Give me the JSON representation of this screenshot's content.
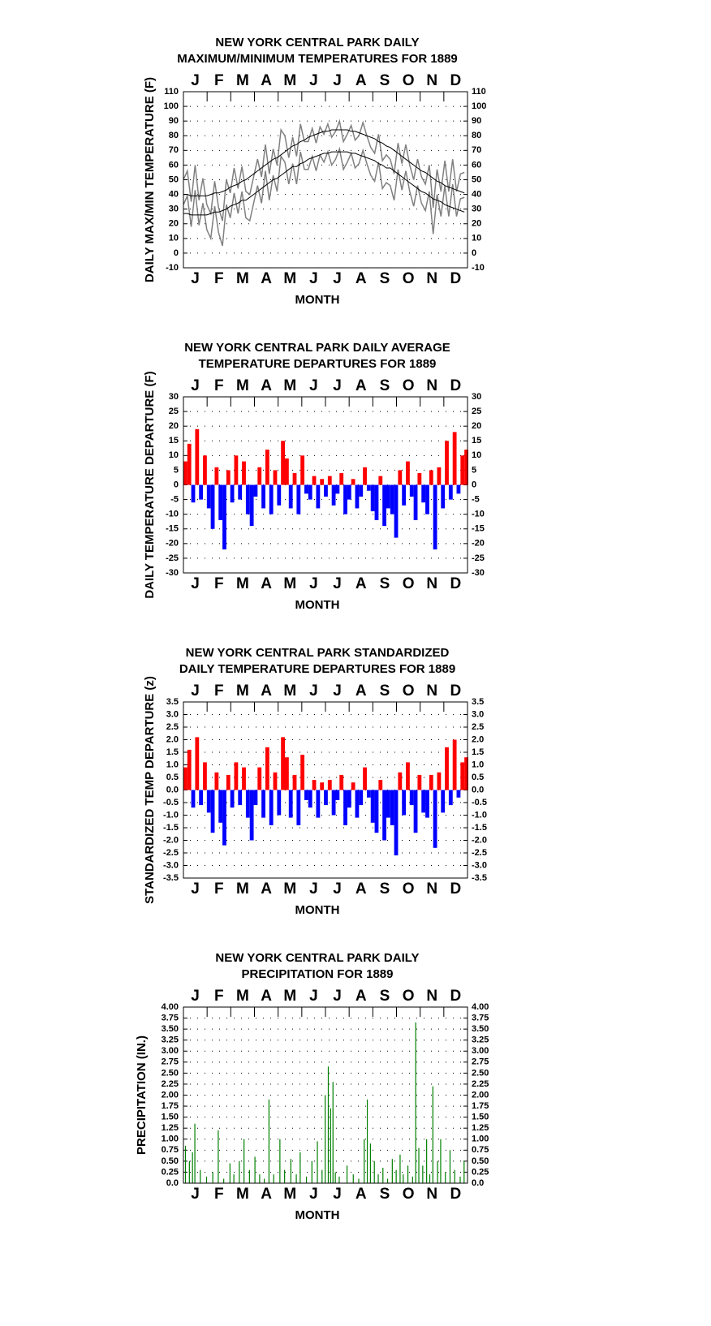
{
  "chart_data": [
    {
      "type": "line",
      "title": [
        "NEW YORK CENTRAL PARK DAILY",
        "MAXIMUM/MINIMUM TEMPERATURES FOR 1889"
      ],
      "categories": [
        "J",
        "F",
        "M",
        "A",
        "M",
        "J",
        "J",
        "A",
        "S",
        "O",
        "N",
        "D"
      ],
      "x_label": "MONTH",
      "y_label": "DAILY MAX/MIN TEMPERATURE (F)",
      "xlim": [
        1,
        365
      ],
      "ylim": [
        -10,
        110
      ],
      "yticks": [
        -10,
        0,
        10,
        20,
        30,
        40,
        50,
        60,
        70,
        80,
        90,
        100,
        110
      ],
      "grid": true,
      "x": [
        1,
        6,
        11,
        16,
        21,
        26,
        31,
        36,
        41,
        46,
        51,
        56,
        61,
        66,
        71,
        76,
        81,
        86,
        91,
        96,
        101,
        106,
        111,
        116,
        121,
        126,
        131,
        136,
        141,
        146,
        151,
        156,
        161,
        166,
        171,
        176,
        181,
        186,
        191,
        196,
        201,
        206,
        211,
        216,
        221,
        226,
        231,
        236,
        241,
        246,
        251,
        256,
        261,
        266,
        271,
        276,
        281,
        286,
        291,
        296,
        301,
        306,
        311,
        316,
        321,
        326,
        331,
        336,
        341,
        346,
        351,
        356,
        361
      ],
      "series": [
        {
          "color": "#808080",
          "values": [
            50,
            56,
            35,
            60,
            36,
            51,
            33,
            27,
            49,
            31,
            22,
            50,
            41,
            58,
            44,
            59,
            42,
            40,
            52,
            64,
            52,
            74,
            54,
            71,
            60,
            84,
            80,
            65,
            79,
            66,
            88,
            76,
            76,
            85,
            75,
            86,
            81,
            88,
            79,
            83,
            90,
            76,
            81,
            87,
            77,
            80,
            89,
            80,
            72,
            68,
            81,
            63,
            67,
            64,
            54,
            75,
            61,
            74,
            60,
            50,
            64,
            52,
            47,
            60,
            31,
            57,
            42,
            63,
            42,
            64,
            42,
            54,
            55
          ]
        },
        {
          "color": "#808080",
          "values": [
            33,
            39,
            18,
            43,
            19,
            34,
            16,
            10,
            32,
            14,
            5,
            33,
            24,
            41,
            27,
            42,
            24,
            22,
            34,
            46,
            34,
            56,
            36,
            53,
            42,
            66,
            62,
            47,
            61,
            47,
            69,
            57,
            57,
            66,
            56,
            67,
            62,
            69,
            60,
            64,
            71,
            57,
            62,
            68,
            58,
            61,
            70,
            61,
            53,
            49,
            62,
            44,
            48,
            46,
            36,
            57,
            43,
            56,
            42,
            32,
            46,
            34,
            29,
            42,
            13,
            40,
            25,
            46,
            25,
            47,
            25,
            37,
            38
          ]
        },
        {
          "color": "#000000",
          "values": [
            40,
            40,
            39,
            39,
            39,
            39,
            39,
            40,
            41,
            41,
            42,
            43,
            45,
            46,
            47,
            49,
            50,
            52,
            54,
            56,
            58,
            60,
            62,
            64,
            65,
            67,
            69,
            71,
            73,
            74,
            76,
            77,
            79,
            80,
            81,
            82,
            83,
            83,
            84,
            84,
            84,
            84,
            84,
            83,
            83,
            82,
            81,
            80,
            79,
            78,
            76,
            75,
            73,
            72,
            70,
            68,
            66,
            64,
            62,
            60,
            58,
            56,
            55,
            53,
            51,
            49,
            48,
            46,
            45,
            44,
            43,
            42,
            41
          ]
        },
        {
          "color": "#000000",
          "values": [
            27,
            27,
            26,
            26,
            26,
            26,
            26,
            27,
            28,
            28,
            29,
            30,
            32,
            33,
            34,
            36,
            36,
            38,
            40,
            42,
            44,
            46,
            48,
            50,
            51,
            53,
            55,
            57,
            59,
            59,
            61,
            62,
            64,
            65,
            66,
            67,
            68,
            68,
            69,
            69,
            69,
            69,
            69,
            68,
            68,
            67,
            66,
            65,
            64,
            63,
            61,
            60,
            58,
            58,
            56,
            54,
            52,
            50,
            48,
            46,
            44,
            42,
            41,
            39,
            37,
            36,
            35,
            33,
            32,
            31,
            30,
            29,
            28
          ]
        }
      ]
    },
    {
      "type": "bar",
      "title": [
        "NEW YORK CENTRAL PARK DAILY AVERAGE",
        "TEMPERATURE DEPARTURES FOR 1889"
      ],
      "categories": [
        "J",
        "F",
        "M",
        "A",
        "M",
        "J",
        "J",
        "A",
        "S",
        "O",
        "N",
        "D"
      ],
      "x_label": "MONTH",
      "y_label": "DAILY TEMPERATURE DEPARTURE (F)",
      "xlim": [
        1,
        365
      ],
      "ylim": [
        -30,
        30
      ],
      "yticks": [
        -30,
        -25,
        -20,
        -15,
        -10,
        -5,
        0,
        5,
        10,
        15,
        20,
        25,
        30
      ],
      "grid": true,
      "positive_color": "#ff0000",
      "negative_color": "#0000ff",
      "bar_days": 5,
      "x": [
        1,
        6,
        11,
        16,
        21,
        26,
        31,
        36,
        41,
        46,
        51,
        56,
        61,
        66,
        71,
        76,
        81,
        86,
        91,
        96,
        101,
        106,
        111,
        116,
        121,
        126,
        131,
        136,
        141,
        146,
        151,
        156,
        161,
        166,
        171,
        176,
        181,
        186,
        191,
        196,
        201,
        206,
        211,
        216,
        221,
        226,
        231,
        236,
        241,
        246,
        251,
        256,
        261,
        266,
        271,
        276,
        281,
        286,
        291,
        296,
        301,
        306,
        311,
        316,
        321,
        326,
        331,
        336,
        341,
        346,
        351,
        356,
        361
      ],
      "values": [
        8,
        14,
        -6,
        19,
        -5,
        10,
        -8,
        -15,
        6,
        -12,
        -22,
        5,
        -6,
        10,
        -5,
        8,
        -10,
        -14,
        -4,
        6,
        -8,
        12,
        -10,
        5,
        -7,
        15,
        9,
        -8,
        4,
        -10,
        10,
        -3,
        -5,
        3,
        -8,
        2,
        -4,
        3,
        -7,
        -3,
        4,
        -10,
        -5,
        2,
        -8,
        -4,
        6,
        -2,
        -9,
        -12,
        3,
        -14,
        -8,
        -10,
        -18,
        5,
        -7,
        8,
        -4,
        -12,
        4,
        -6,
        -10,
        5,
        -22,
        6,
        -8,
        15,
        -5,
        18,
        -3,
        10,
        12
      ]
    },
    {
      "type": "bar",
      "title": [
        "NEW YORK CENTRAL PARK STANDARDIZED",
        "DAILY TEMPERATURE DEPARTURES FOR 1889"
      ],
      "categories": [
        "J",
        "F",
        "M",
        "A",
        "M",
        "J",
        "J",
        "A",
        "S",
        "O",
        "N",
        "D"
      ],
      "x_label": "MONTH",
      "y_label": "STANDARDIZED TEMP DEPARTURE (z)",
      "xlim": [
        1,
        365
      ],
      "ylim": [
        -3.5,
        3.5
      ],
      "yticks": [
        -3.5,
        {
          "value": -3,
          "label": "-3.0"
        },
        -2.5,
        {
          "value": -2,
          "label": "-2.0"
        },
        -1.5,
        {
          "value": -1,
          "label": "-1.0"
        },
        -0.5,
        {
          "value": 0,
          "label": "0.0"
        },
        0.5,
        {
          "value": 1,
          "label": "1.0"
        },
        1.5,
        {
          "value": 2,
          "label": "2.0"
        },
        2.5,
        {
          "value": 3,
          "label": "3.0"
        },
        3.5
      ],
      "grid": true,
      "positive_color": "#ff0000",
      "negative_color": "#0000ff",
      "bar_days": 5,
      "x": [
        1,
        6,
        11,
        16,
        21,
        26,
        31,
        36,
        41,
        46,
        51,
        56,
        61,
        66,
        71,
        76,
        81,
        86,
        91,
        96,
        101,
        106,
        111,
        116,
        121,
        126,
        131,
        136,
        141,
        146,
        151,
        156,
        161,
        166,
        171,
        176,
        181,
        186,
        191,
        196,
        201,
        206,
        211,
        216,
        221,
        226,
        231,
        236,
        241,
        246,
        251,
        256,
        261,
        266,
        271,
        276,
        281,
        286,
        291,
        296,
        301,
        306,
        311,
        316,
        321,
        326,
        331,
        336,
        341,
        346,
        351,
        356,
        361
      ],
      "values": [
        0.9,
        1.6,
        -0.7,
        2.1,
        -0.6,
        1.1,
        -0.9,
        -1.7,
        0.7,
        -1.3,
        -2.2,
        0.6,
        -0.7,
        1.1,
        -0.6,
        0.9,
        -1.1,
        -2.0,
        -0.6,
        0.9,
        -1.1,
        1.7,
        -1.4,
        0.7,
        -1.0,
        2.1,
        1.3,
        -1.1,
        0.6,
        -1.4,
        1.4,
        -0.4,
        -0.7,
        0.4,
        -1.1,
        0.3,
        -0.6,
        0.4,
        -1.0,
        -0.4,
        0.6,
        -1.4,
        -0.7,
        0.3,
        -1.1,
        -0.6,
        0.9,
        -0.3,
        -1.3,
        -1.7,
        0.4,
        -2.0,
        -1.1,
        -1.4,
        -2.6,
        0.7,
        -1.0,
        1.1,
        -0.6,
        -1.7,
        0.6,
        -0.9,
        -1.1,
        0.6,
        -2.3,
        0.7,
        -0.9,
        1.7,
        -0.6,
        2.0,
        -0.3,
        1.1,
        1.3
      ]
    },
    {
      "type": "bar",
      "title": [
        "NEW YORK CENTRAL PARK DAILY",
        "PRECIPITATION FOR 1889"
      ],
      "categories": [
        "J",
        "F",
        "M",
        "A",
        "M",
        "J",
        "J",
        "A",
        "S",
        "O",
        "N",
        "D"
      ],
      "x_label": "MONTH",
      "y_label": "PRECIPITATION (IN.)",
      "xlim": [
        1,
        365
      ],
      "ylim": [
        0,
        4
      ],
      "yticks": [
        {
          "value": 0,
          "label": "0.0"
        },
        0.25,
        {
          "value": 0.5,
          "label": "0.50"
        },
        0.75,
        {
          "value": 1,
          "label": "1.00"
        },
        1.25,
        {
          "value": 1.5,
          "label": "1.50"
        },
        1.75,
        {
          "value": 2,
          "label": "2.00"
        },
        2.25,
        {
          "value": 2.5,
          "label": "2.50"
        },
        2.75,
        {
          "value": 3,
          "label": "3.00"
        },
        3.25,
        {
          "value": 3.5,
          "label": "3.50"
        },
        3.75,
        {
          "value": 4,
          "label": "4.00"
        }
      ],
      "grid": true,
      "color": "#008000",
      "bar_days": 1,
      "x": [
        3,
        8,
        12,
        15,
        22,
        30,
        38,
        45,
        52,
        60,
        65,
        72,
        78,
        85,
        92,
        98,
        104,
        110,
        116,
        124,
        130,
        138,
        145,
        150,
        158,
        165,
        172,
        178,
        182,
        186,
        189,
        192,
        195,
        200,
        210,
        218,
        225,
        232,
        236,
        240,
        245,
        250,
        256,
        262,
        268,
        273,
        278,
        282,
        288,
        294,
        298,
        302,
        307,
        312,
        316,
        320,
        326,
        330,
        336,
        342,
        348,
        355,
        360
      ],
      "values": [
        0.85,
        0.5,
        0.7,
        1.35,
        0.3,
        0.15,
        0.25,
        1.2,
        0.1,
        0.45,
        0.2,
        0.5,
        1.0,
        0.3,
        0.6,
        0.2,
        0.1,
        1.9,
        0.2,
        1.0,
        0.3,
        0.55,
        0.2,
        0.7,
        0.15,
        0.5,
        0.95,
        0.3,
        2.0,
        2.65,
        1.7,
        2.3,
        0.25,
        0.15,
        0.4,
        0.2,
        0.1,
        1.0,
        1.9,
        0.9,
        0.5,
        0.2,
        0.35,
        0.1,
        0.55,
        0.3,
        0.65,
        0.2,
        0.4,
        0.15,
        3.65,
        0.8,
        0.4,
        1.0,
        0.2,
        2.2,
        0.5,
        1.0,
        0.25,
        0.75,
        0.3,
        0.15,
        0.5
      ]
    }
  ]
}
